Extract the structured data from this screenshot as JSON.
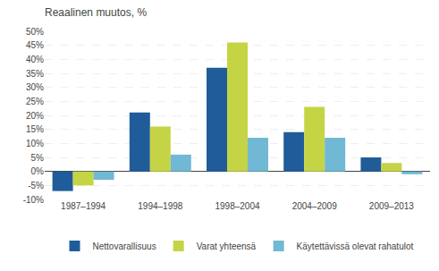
{
  "chart_data": {
    "type": "bar",
    "title": "Reaalinen muutos, %",
    "categories": [
      "1987–1994",
      "1994–1998",
      "1998–2004",
      "2004–2009",
      "2009–2013"
    ],
    "series": [
      {
        "name": "Nettovarallisuus",
        "color": "#1f5c99",
        "values": [
          -7,
          21,
          37,
          14,
          5
        ]
      },
      {
        "name": "Varat yhteensä",
        "color": "#c5d444",
        "values": [
          -5,
          16,
          46,
          23,
          3
        ]
      },
      {
        "name": "Käytettävissä olevat rahatulot",
        "color": "#70b8d4",
        "values": [
          -3,
          6,
          12,
          12,
          -1
        ]
      }
    ],
    "ylim": [
      -10,
      50
    ],
    "yticks": [
      {
        "value": -10,
        "label": "-10%"
      },
      {
        "value": -5,
        "label": "-5%"
      },
      {
        "value": 0,
        "label": "0%"
      },
      {
        "value": 5,
        "label": "5%"
      },
      {
        "value": 10,
        "label": "10%"
      },
      {
        "value": 15,
        "label": "15%"
      },
      {
        "value": 20,
        "label": "20%"
      },
      {
        "value": 25,
        "label": "25%"
      },
      {
        "value": 30,
        "label": "30%"
      },
      {
        "value": 35,
        "label": "35%"
      },
      {
        "value": 40,
        "label": "40%"
      },
      {
        "value": 45,
        "label": "45%"
      },
      {
        "value": 50,
        "label": "50%"
      }
    ],
    "grid": true,
    "legend": "bottom"
  }
}
